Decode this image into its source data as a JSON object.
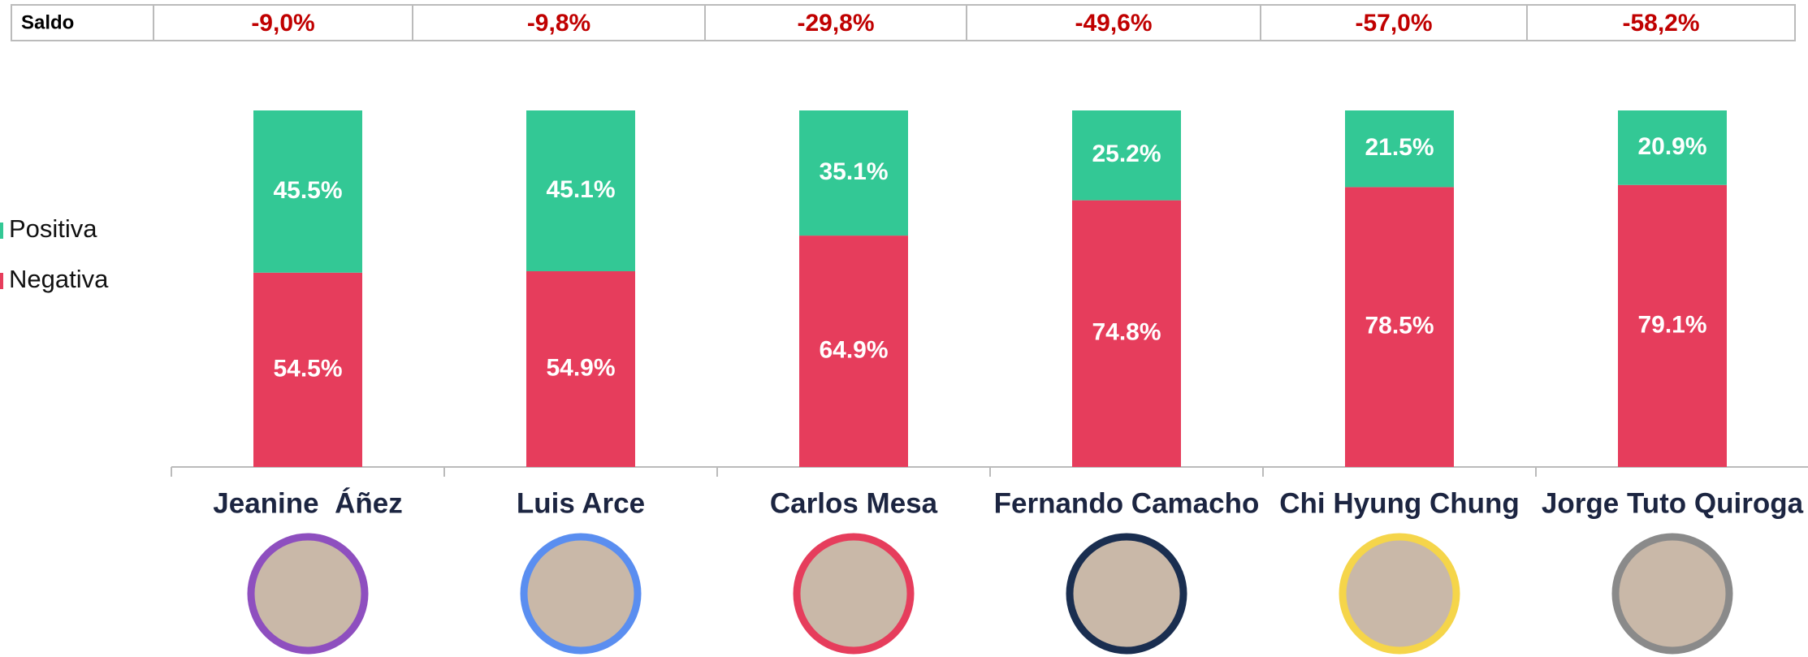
{
  "saldo": {
    "label": "Saldo",
    "cells": [
      "-9,0%",
      "-9,8%",
      "-29,8%",
      "-49,6%",
      "-57,0%",
      "-58,2%"
    ]
  },
  "chart_data": {
    "type": "stacked_bar",
    "categories": [
      "Jeanine  Áñez",
      "Luis Arce",
      "Carlos Mesa",
      "Fernando Camacho",
      "Chi Hyung Chung",
      "Jorge Tuto Quiroga"
    ],
    "series": [
      {
        "name": "Positiva",
        "color": "#33c895",
        "values": [
          45.5,
          45.1,
          35.1,
          25.2,
          21.5,
          20.9
        ],
        "value_labels": [
          "45.5%",
          "45.1%",
          "35.1%",
          "25.2%",
          "21.5%",
          "20.9%"
        ]
      },
      {
        "name": "Negativa",
        "color": "#e63d5c",
        "values": [
          54.5,
          54.9,
          64.9,
          74.8,
          78.5,
          79.1
        ],
        "value_labels": [
          "54.5%",
          "54.9%",
          "64.9%",
          "74.8%",
          "78.5%",
          "79.1%"
        ]
      }
    ],
    "ylim": [
      0,
      100
    ]
  }
}
